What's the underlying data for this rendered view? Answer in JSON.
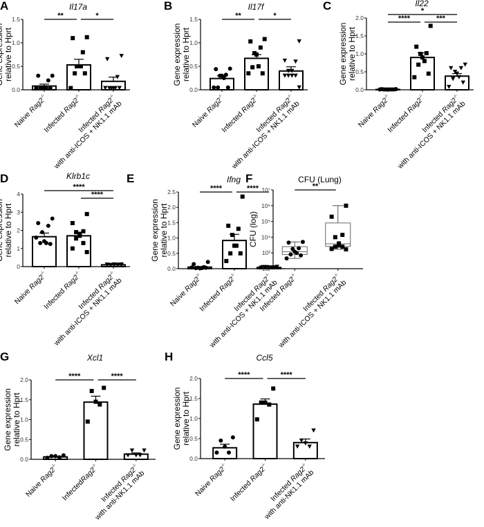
{
  "chart_data": [
    {
      "letter": "A",
      "type": "bar",
      "title": "Il17a",
      "ylabel": [
        "Gene expression",
        "relative to Hprt"
      ],
      "ylim": [
        0,
        1.5
      ],
      "ticks": [
        "0.0",
        "0.5",
        "1.0",
        "1.5"
      ],
      "tickvals": [
        0,
        0.5,
        1.0,
        1.5
      ],
      "categories": [
        {
          "prefix": "Naive ",
          "gene": "Rag2",
          "sup": "-/-",
          "line2": ""
        },
        {
          "prefix": "Infected ",
          "gene": "Rag2",
          "sup": "-/-",
          "line2": ""
        },
        {
          "prefix": "Infected ",
          "gene": "Rag2",
          "sup": "-/-",
          "line2": "with anti-ICOS + NK1.1 mAb"
        }
      ],
      "means": [
        0.08,
        0.53,
        0.18
      ],
      "sem": [
        0.04,
        0.12,
        0.09
      ],
      "markers": [
        "circle",
        "square",
        "triangle"
      ],
      "points": [
        [
          0.3,
          0.3,
          0.2,
          0,
          0,
          0,
          0,
          0,
          0
        ],
        [
          1.12,
          1.1,
          0.8,
          0.5,
          0.5,
          0.5,
          0.35,
          0.35,
          0
        ],
        [
          0.72,
          0.65,
          0.27,
          0,
          0,
          0,
          0,
          0,
          0
        ]
      ],
      "significance": [
        {
          "pair": [
            0,
            1
          ],
          "label": "**"
        },
        {
          "pair": [
            1,
            2
          ],
          "label": "*"
        }
      ]
    },
    {
      "letter": "B",
      "type": "bar",
      "title": "Il17f",
      "ylabel": [
        "Gene expression",
        "relative to Hprt"
      ],
      "ylim": [
        0,
        1.5
      ],
      "ticks": [
        "0.0",
        "0.5",
        "1.0",
        "1.5"
      ],
      "tickvals": [
        0,
        0.5,
        1.0,
        1.5
      ],
      "categories": [
        {
          "prefix": "Naive ",
          "gene": "Rag2",
          "sup": "-/-",
          "line2": ""
        },
        {
          "prefix": "Infected ",
          "gene": "Rag2",
          "sup": "-/-",
          "line2": ""
        },
        {
          "prefix": "Infected ",
          "gene": "Rag2",
          "sup": "-/-",
          "line2": "with anti-ICOS + NK1.1 mAb"
        }
      ],
      "means": [
        0.24,
        0.67,
        0.4
      ],
      "sem": [
        0.06,
        0.08,
        0.09
      ],
      "markers": [
        "circle",
        "square",
        "triangle"
      ],
      "points": [
        [
          0.45,
          0.44,
          0.32,
          0.3,
          0.3,
          0.25,
          0.05,
          0.05,
          0.05
        ],
        [
          1.08,
          1.03,
          0.9,
          0.78,
          0.75,
          0.5,
          0.48,
          0.35,
          0.35
        ],
        [
          1.03,
          0.62,
          0.6,
          0.4,
          0.4,
          0.3,
          0.3,
          0.3,
          0.3,
          0.05
        ]
      ],
      "significance": [
        {
          "pair": [
            0,
            1
          ],
          "label": "**"
        },
        {
          "pair": [
            1,
            2
          ],
          "label": "*"
        }
      ]
    },
    {
      "letter": "C",
      "type": "bar",
      "title": "Il22",
      "ylabel": [
        "Gene expression",
        "relative to Hprt"
      ],
      "ylim": [
        0,
        2.0
      ],
      "ticks": [
        "0.0",
        "0.5",
        "1.0",
        "1.5",
        "2.0"
      ],
      "tickvals": [
        0,
        0.5,
        1.0,
        1.5,
        2.0
      ],
      "categories": [
        {
          "prefix": "Naive ",
          "gene": "Rag2",
          "sup": "-/-",
          "line2": ""
        },
        {
          "prefix": "Infected ",
          "gene": "Rag2",
          "sup": "-/-",
          "line2": ""
        },
        {
          "prefix": "Infected ",
          "gene": "Rag2",
          "sup": "-/-",
          "line2": "with anti-ICOS + NK1.1 mAb"
        }
      ],
      "means": [
        0.01,
        0.9,
        0.38
      ],
      "sem": [
        0.005,
        0.13,
        0.07
      ],
      "markers": [
        "circle",
        "square",
        "triangle"
      ],
      "points": [
        [
          0.02,
          0.02,
          0.01,
          0.01,
          0.01,
          0.01,
          0.01,
          0.01,
          0.01
        ],
        [
          1.78,
          1.2,
          1.02,
          1.0,
          0.9,
          0.8,
          0.7,
          0.45,
          0.35
        ],
        [
          0.7,
          0.6,
          0.6,
          0.5,
          0.45,
          0.35,
          0.3,
          0.2,
          0.08
        ]
      ],
      "significance": [
        {
          "pair": [
            0,
            1
          ],
          "label": "****"
        },
        {
          "pair": [
            1,
            2
          ],
          "label": "***"
        },
        {
          "pair": [
            0,
            2
          ],
          "label": "*"
        }
      ]
    },
    {
      "letter": "D",
      "type": "bar",
      "title": "Klrb1c",
      "ylabel": [
        "Gene expression",
        "relative to Hprt"
      ],
      "ylim": [
        0,
        4
      ],
      "ticks": [
        "0",
        "1",
        "2",
        "3",
        "4"
      ],
      "tickvals": [
        0,
        1,
        2,
        3,
        4
      ],
      "categories": [
        {
          "prefix": "Naive ",
          "gene": "Rag2",
          "sup": "-/-",
          "line2": ""
        },
        {
          "prefix": "Infected ",
          "gene": "Rag2",
          "sup": "-/-",
          "line2": ""
        },
        {
          "prefix": "Infected ",
          "gene": "Rag2",
          "sup": "-/-",
          "line2": "with anti-ICOS + NK1.1 mAb"
        }
      ],
      "means": [
        1.65,
        1.7,
        0.1
      ],
      "sem": [
        0.2,
        0.2,
        0.02
      ],
      "markers": [
        "circle",
        "square",
        "triangle"
      ],
      "points": [
        [
          2.65,
          2.4,
          2.25,
          1.9,
          1.4,
          1.3,
          1.3,
          1.25,
          1.6
        ],
        [
          2.9,
          2.4,
          1.95,
          1.9,
          1.8,
          1.7,
          1.55,
          1.3,
          1.0,
          0.8
        ],
        [
          0.12,
          0.1,
          0.1,
          0.08,
          0.1,
          0.12,
          0.09,
          0.1,
          0.11,
          0.08
        ]
      ],
      "significance": [
        {
          "pair": [
            0,
            2
          ],
          "label": "****"
        },
        {
          "pair": [
            1,
            2
          ],
          "label": "****"
        }
      ]
    },
    {
      "letter": "E",
      "type": "bar",
      "title": "Ifng",
      "ylabel": [
        "Gene expression",
        "relative to Hprt"
      ],
      "ylim": [
        0,
        2.5
      ],
      "ticks": [
        "0.0",
        "0.5",
        "1.0",
        "1.5",
        "2.0",
        "2.5"
      ],
      "tickvals": [
        0,
        0.5,
        1.0,
        1.5,
        2.0,
        2.5
      ],
      "categories": [
        {
          "prefix": "Naive ",
          "gene": "Rag2",
          "sup": "-/-",
          "line2": ""
        },
        {
          "prefix": "Infected ",
          "gene": "Rag2",
          "sup": "-/-",
          "line2": ""
        },
        {
          "prefix": "Infected ",
          "gene": "Rag2",
          "sup": "-/-",
          "line2": "with anti-ICOS + NK1.1 mAb"
        }
      ],
      "means": [
        0.05,
        0.92,
        0.04
      ],
      "sem": [
        0.02,
        0.2,
        0.01
      ],
      "markers": [
        "circle",
        "square",
        "triangle"
      ],
      "points": [
        [
          0.22,
          0.15,
          0.05,
          0.03,
          0.02,
          0.02,
          0.02,
          0.03,
          0.04
        ],
        [
          2.35,
          1.4,
          1.3,
          1.1,
          0.75,
          0.75,
          0.5,
          0.5,
          0.25
        ],
        [
          0.06,
          0.05,
          0.04,
          0.05,
          0.03,
          0.04,
          0.05,
          0.04,
          0.03
        ]
      ],
      "significance": [
        {
          "pair": [
            0,
            1
          ],
          "label": "****"
        },
        {
          "pair": [
            1,
            2
          ],
          "label": "****"
        }
      ]
    },
    {
      "letter": "F",
      "type": "box",
      "title": "CFU (Lung)",
      "ylabel": [
        "CFU (log)"
      ],
      "ylim": [
        100,
        10000000
      ],
      "log": true,
      "ticks": [
        "10²",
        "10³",
        "10⁴",
        "10⁵",
        "10⁶",
        "10⁷"
      ],
      "tickvals": [
        100,
        1000,
        10000,
        100000,
        1000000,
        10000000
      ],
      "categories": [
        {
          "prefix": "Infected ",
          "gene": "Rag2",
          "sup": "-/-",
          "line2": ""
        },
        {
          "prefix": "Infected ",
          "gene": "Rag2",
          "sup": "-/-",
          "line2": "with anti-ICOS + NK1.1 mAb"
        }
      ],
      "boxes": [
        {
          "min": 450,
          "q1": 800,
          "median": 1200,
          "q3": 2500,
          "max": 5000
        },
        {
          "min": 1700,
          "q1": 2600,
          "median": 3800,
          "q3": 80000,
          "max": 1000000
        }
      ],
      "markers": [
        "circle",
        "square"
      ],
      "points": [
        [
          5000,
          4500,
          2000,
          1800,
          1200,
          1000,
          800,
          700,
          450
        ],
        [
          1000000,
          200000,
          14000,
          10000,
          4000,
          3000,
          2500,
          2500,
          1800,
          1700
        ]
      ],
      "significance": [
        {
          "pair": [
            0,
            1
          ],
          "label": "**"
        }
      ]
    },
    {
      "letter": "G",
      "type": "bar",
      "title": "Xcl1",
      "ylabel": [
        "Gene expression",
        "relative to Hprt"
      ],
      "ylim": [
        0,
        2.0
      ],
      "ticks": [
        "0.0",
        "0.5",
        "1.0",
        "1.5",
        "2.0"
      ],
      "tickvals": [
        0,
        0.5,
        1.0,
        1.5,
        2.0
      ],
      "categories": [
        {
          "prefix": "Naive ",
          "gene": "Rag2",
          "sup": "-/-",
          "line2": ""
        },
        {
          "prefix": "Infected",
          "gene": "Rag2",
          "sup": "-/-",
          "line2": ""
        },
        {
          "prefix": "Infected ",
          "gene": "Rag2",
          "sup": "-/-",
          "line2": "with anti-NK1.1 mAb"
        }
      ],
      "means": [
        0.06,
        1.44,
        0.13
      ],
      "sem": [
        0.01,
        0.15,
        0.03
      ],
      "markers": [
        "circle",
        "square",
        "triangle"
      ],
      "points": [
        [
          0.1,
          0.08,
          0.08,
          0.05,
          0.04
        ],
        [
          1.8,
          1.72,
          1.45,
          1.38,
          0.95
        ],
        [
          0.22,
          0.22,
          0.1,
          0.1,
          0.1
        ]
      ],
      "significance": [
        {
          "pair": [
            0,
            1
          ],
          "label": "****"
        },
        {
          "pair": [
            1,
            2
          ],
          "label": "****"
        }
      ]
    },
    {
      "letter": "H",
      "type": "bar",
      "title": "Ccl5",
      "ylabel": [
        "Gene expression",
        "relative to Hprt"
      ],
      "ylim": [
        0,
        2.0
      ],
      "ticks": [
        "0.0",
        "0.5",
        "1.0",
        "1.5",
        "2.0"
      ],
      "tickvals": [
        0,
        0.5,
        1.0,
        1.5,
        2.0
      ],
      "categories": [
        {
          "prefix": "Naive ",
          "gene": "Rag2",
          "sup": "-/-",
          "line2": ""
        },
        {
          "prefix": "Infected ",
          "gene": "Rag2",
          "sup": "-/-",
          "line2": ""
        },
        {
          "prefix": "Infected ",
          "gene": "Rag2",
          "sup": "-/-",
          "line2": "with anti-NK1.1 mAb"
        }
      ],
      "means": [
        0.27,
        1.36,
        0.4
      ],
      "sem": [
        0.09,
        0.13,
        0.09
      ],
      "markers": [
        "circle",
        "square",
        "triangle"
      ],
      "points": [
        [
          0.53,
          0.45,
          0.3,
          0.15,
          0.15
        ],
        [
          1.75,
          1.4,
          1.4,
          1.35,
          0.98
        ],
        [
          0.7,
          0.45,
          0.38,
          0.3,
          0.3
        ]
      ],
      "significance": [
        {
          "pair": [
            0,
            1
          ],
          "label": "****"
        },
        {
          "pair": [
            1,
            2
          ],
          "label": "****"
        }
      ]
    }
  ]
}
